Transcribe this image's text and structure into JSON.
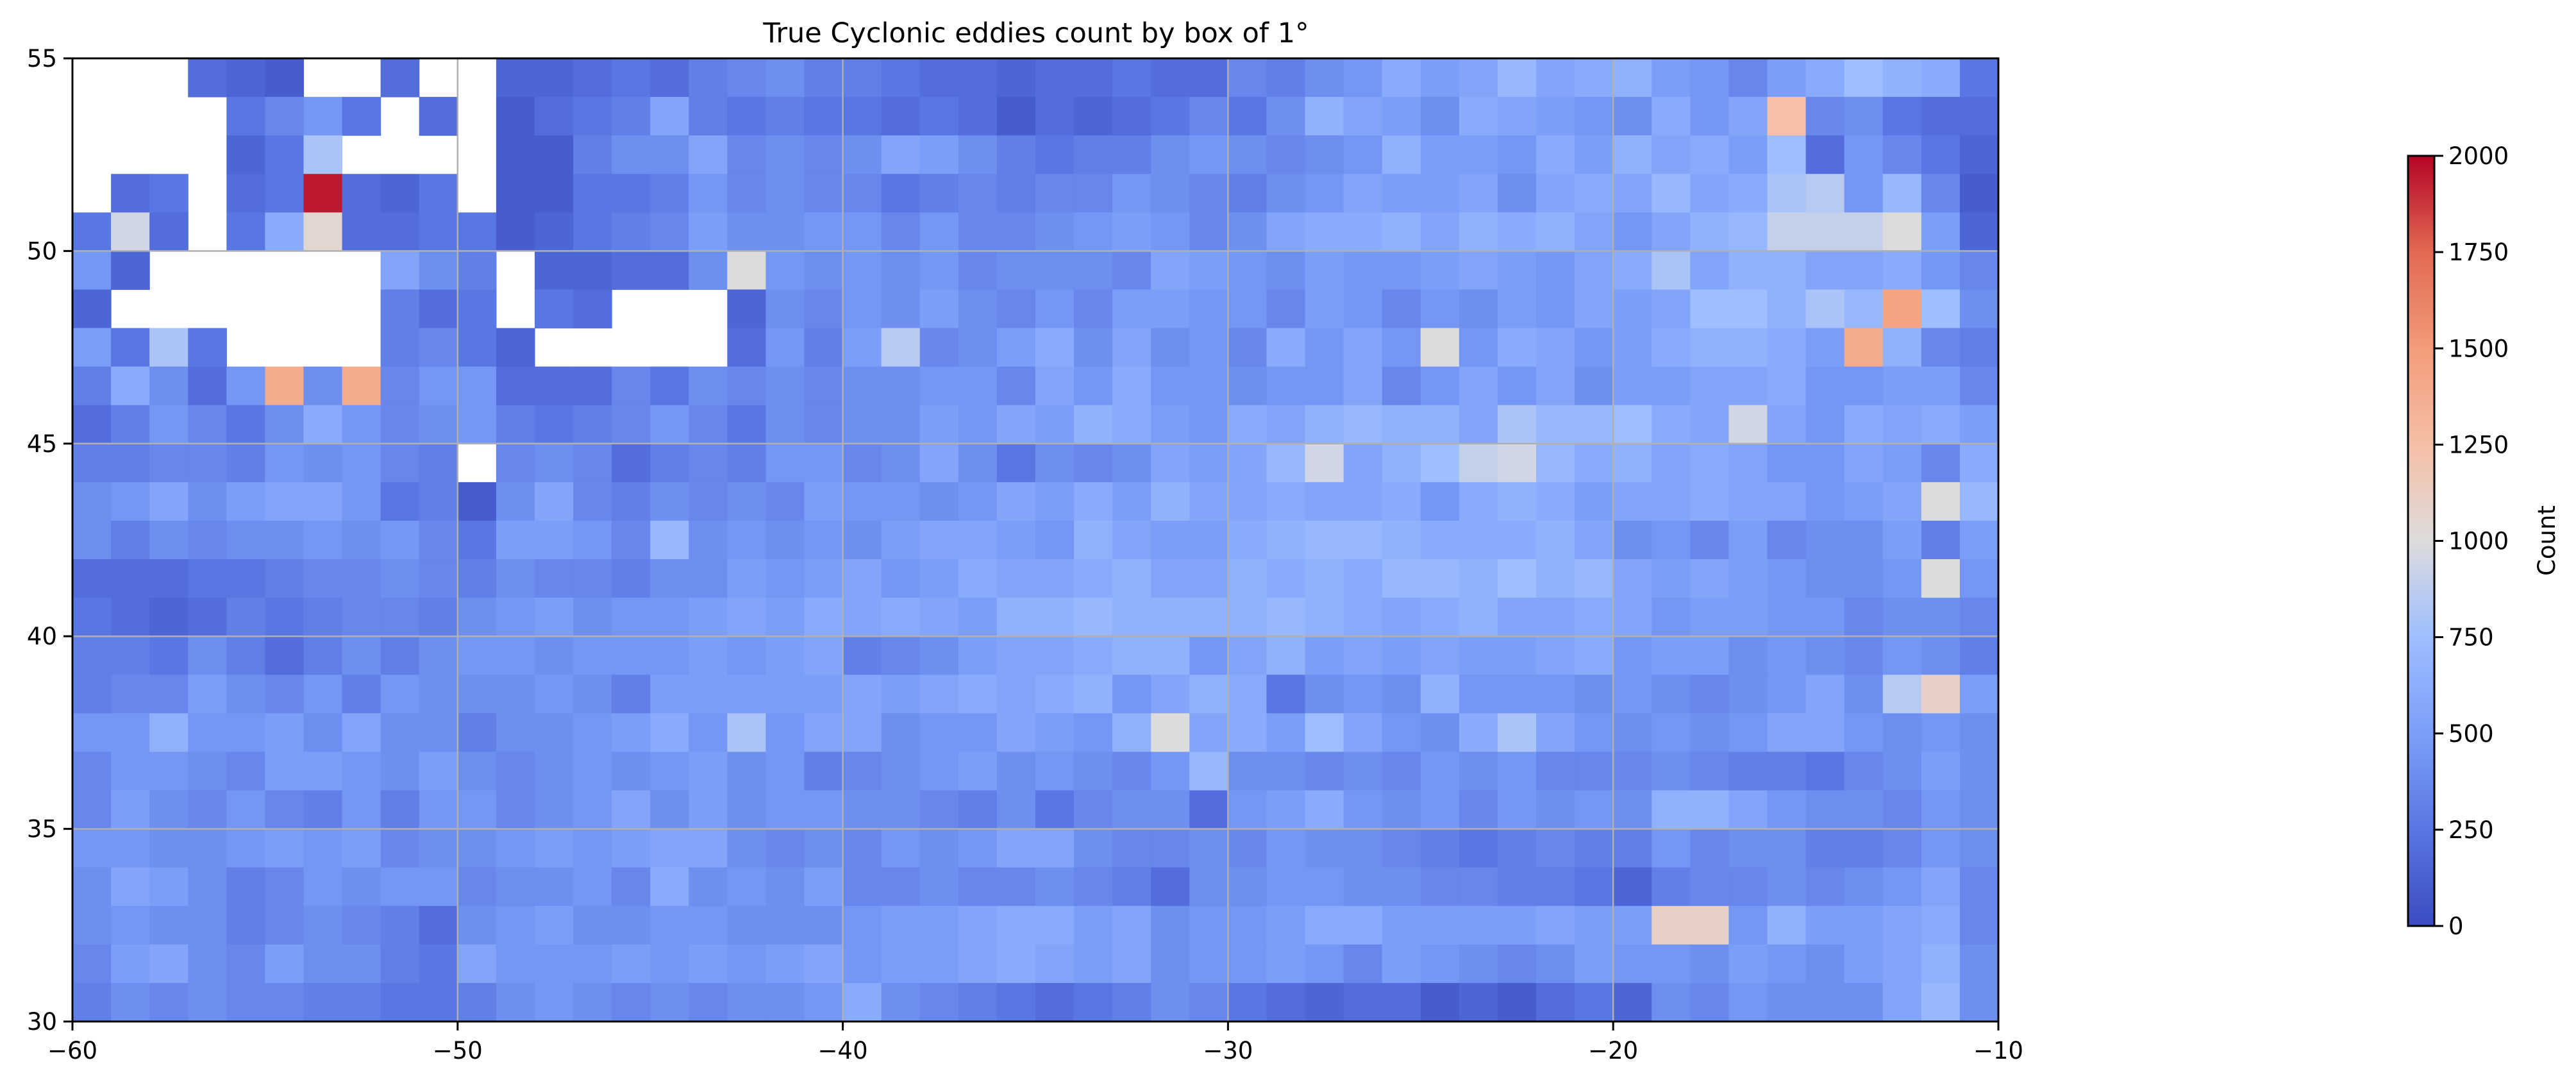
{
  "chart_data": {
    "type": "heatmap",
    "title": "True Cyclonic eddies count by box of 1°",
    "xlim": [
      -60,
      -10
    ],
    "ylim": [
      30,
      55
    ],
    "bin_size_deg": 1,
    "x_ticks": [
      -60,
      -50,
      -40,
      -30,
      -20,
      -10
    ],
    "x_tick_labels": [
      "−60",
      "−50",
      "−40",
      "−30",
      "−20",
      "−10"
    ],
    "y_ticks": [
      30,
      35,
      40,
      45,
      50,
      55
    ],
    "y_tick_labels": [
      "30",
      "35",
      "40",
      "45",
      "50",
      "55"
    ],
    "grid": true,
    "colormap": "coolwarm",
    "colorbar": {
      "label": "Count",
      "range": [
        0,
        2000
      ],
      "ticks": [
        0,
        250,
        500,
        750,
        1000,
        1250,
        1500,
        1750,
        2000
      ],
      "tick_labels": [
        "0",
        "250",
        "500",
        "750",
        "1000",
        "1250",
        "1500",
        "1750",
        "2000"
      ]
    },
    "row_latitudes_top_to_bottom": [
      54.5,
      53.5,
      52.5,
      51.5,
      50.5,
      49.5,
      48.5,
      47.5,
      46.5,
      45.5,
      44.5,
      43.5,
      42.5,
      41.5,
      40.5,
      39.5,
      38.5,
      37.5,
      36.5,
      35.5,
      34.5,
      33.5,
      32.5,
      31.5,
      30.5
    ],
    "column_longitudes": "-59.5 to -10.5 in 1° steps (50 columns)",
    "no_data_value": null,
    "values": [
      [
        null,
        null,
        null,
        200,
        150,
        100,
        null,
        null,
        200,
        null,
        null,
        150,
        150,
        200,
        250,
        200,
        300,
        350,
        400,
        300,
        300,
        250,
        200,
        200,
        150,
        200,
        200,
        250,
        200,
        200,
        350,
        300,
        400,
        450,
        600,
        500,
        550,
        700,
        550,
        600,
        650,
        500,
        450,
        350,
        500,
        600,
        750,
        650,
        600,
        250
      ],
      [
        null,
        null,
        null,
        null,
        250,
        350,
        450,
        250,
        null,
        200,
        null,
        100,
        200,
        250,
        300,
        550,
        300,
        250,
        300,
        250,
        250,
        200,
        250,
        200,
        100,
        200,
        150,
        200,
        250,
        350,
        250,
        400,
        650,
        550,
        500,
        400,
        600,
        550,
        500,
        450,
        400,
        600,
        450,
        550,
        1250,
        350,
        400,
        250,
        200,
        200
      ],
      [
        null,
        null,
        null,
        null,
        150,
        250,
        800,
        null,
        null,
        null,
        null,
        100,
        100,
        300,
        400,
        400,
        550,
        350,
        400,
        350,
        400,
        550,
        500,
        400,
        300,
        250,
        300,
        300,
        400,
        450,
        400,
        350,
        400,
        450,
        650,
        500,
        500,
        450,
        600,
        500,
        650,
        550,
        600,
        500,
        750,
        200,
        450,
        350,
        250,
        150
      ],
      [
        null,
        200,
        250,
        null,
        200,
        250,
        1950,
        200,
        150,
        250,
        null,
        100,
        100,
        250,
        250,
        300,
        450,
        350,
        400,
        350,
        350,
        250,
        300,
        350,
        300,
        350,
        350,
        450,
        400,
        350,
        300,
        400,
        450,
        550,
        500,
        500,
        550,
        400,
        550,
        600,
        550,
        700,
        550,
        600,
        800,
        850,
        450,
        700,
        350,
        100
      ],
      [
        250,
        950,
        200,
        null,
        250,
        600,
        1050,
        200,
        200,
        250,
        250,
        100,
        150,
        250,
        300,
        350,
        500,
        400,
        400,
        450,
        450,
        350,
        450,
        350,
        350,
        400,
        450,
        500,
        450,
        350,
        400,
        550,
        600,
        600,
        650,
        550,
        650,
        600,
        650,
        550,
        450,
        550,
        650,
        700,
        900,
        900,
        900,
        1000,
        500,
        150
      ],
      [
        450,
        150,
        null,
        null,
        null,
        null,
        null,
        null,
        550,
        400,
        300,
        null,
        150,
        150,
        200,
        200,
        400,
        1000,
        450,
        400,
        450,
        400,
        450,
        350,
        400,
        400,
        400,
        350,
        550,
        500,
        450,
        400,
        500,
        450,
        450,
        500,
        550,
        500,
        450,
        550,
        600,
        800,
        550,
        650,
        650,
        550,
        550,
        600,
        450,
        350
      ],
      [
        150,
        null,
        null,
        null,
        null,
        null,
        null,
        null,
        300,
        200,
        250,
        null,
        250,
        200,
        null,
        null,
        null,
        150,
        400,
        350,
        450,
        400,
        500,
        400,
        350,
        450,
        350,
        500,
        500,
        450,
        450,
        350,
        500,
        450,
        350,
        450,
        400,
        500,
        450,
        550,
        500,
        550,
        750,
        750,
        650,
        800,
        700,
        1450,
        750,
        400
      ],
      [
        500,
        250,
        800,
        250,
        null,
        null,
        null,
        null,
        300,
        350,
        250,
        150,
        null,
        null,
        null,
        null,
        null,
        200,
        450,
        300,
        500,
        850,
        350,
        400,
        500,
        600,
        400,
        550,
        400,
        450,
        350,
        600,
        450,
        550,
        450,
        1000,
        450,
        600,
        550,
        450,
        500,
        600,
        650,
        650,
        600,
        500,
        1400,
        650,
        350,
        300
      ],
      [
        300,
        600,
        400,
        200,
        450,
        1400,
        400,
        1400,
        350,
        450,
        450,
        200,
        200,
        200,
        350,
        250,
        400,
        350,
        400,
        350,
        400,
        400,
        450,
        450,
        350,
        550,
        450,
        600,
        450,
        450,
        400,
        450,
        450,
        550,
        350,
        450,
        550,
        450,
        550,
        400,
        500,
        500,
        550,
        550,
        600,
        450,
        450,
        500,
        500,
        350
      ],
      [
        200,
        300,
        450,
        350,
        250,
        400,
        600,
        450,
        350,
        400,
        450,
        300,
        250,
        300,
        350,
        450,
        350,
        250,
        400,
        350,
        400,
        400,
        500,
        450,
        550,
        500,
        650,
        600,
        500,
        450,
        600,
        550,
        650,
        700,
        650,
        650,
        550,
        800,
        700,
        700,
        750,
        600,
        550,
        950,
        550,
        450,
        600,
        550,
        600,
        500
      ],
      [
        300,
        300,
        350,
        350,
        300,
        450,
        400,
        450,
        350,
        300,
        null,
        350,
        400,
        350,
        200,
        300,
        350,
        300,
        450,
        450,
        350,
        400,
        550,
        400,
        250,
        400,
        350,
        400,
        550,
        500,
        550,
        700,
        950,
        550,
        650,
        750,
        900,
        950,
        700,
        600,
        650,
        550,
        600,
        550,
        450,
        450,
        550,
        500,
        350,
        600
      ],
      [
        400,
        450,
        550,
        400,
        500,
        550,
        550,
        450,
        250,
        300,
        100,
        400,
        550,
        350,
        300,
        400,
        350,
        400,
        350,
        500,
        450,
        450,
        400,
        450,
        550,
        500,
        600,
        500,
        650,
        550,
        550,
        600,
        550,
        550,
        600,
        450,
        600,
        650,
        600,
        500,
        550,
        550,
        600,
        550,
        550,
        450,
        500,
        550,
        1000,
        700
      ],
      [
        400,
        300,
        400,
        350,
        400,
        400,
        450,
        400,
        450,
        350,
        250,
        500,
        500,
        450,
        350,
        700,
        400,
        450,
        400,
        450,
        400,
        500,
        550,
        550,
        500,
        450,
        650,
        550,
        500,
        500,
        600,
        650,
        700,
        700,
        650,
        600,
        600,
        600,
        650,
        550,
        400,
        450,
        350,
        500,
        350,
        400,
        400,
        500,
        300,
        500
      ],
      [
        200,
        200,
        200,
        250,
        250,
        300,
        350,
        350,
        400,
        350,
        300,
        400,
        350,
        350,
        300,
        400,
        400,
        500,
        450,
        500,
        550,
        450,
        500,
        600,
        550,
        550,
        600,
        650,
        550,
        550,
        650,
        600,
        650,
        600,
        700,
        700,
        650,
        750,
        650,
        700,
        550,
        500,
        550,
        500,
        450,
        400,
        400,
        450,
        1000,
        450
      ],
      [
        250,
        200,
        150,
        200,
        300,
        250,
        300,
        350,
        350,
        300,
        400,
        450,
        500,
        400,
        450,
        450,
        500,
        550,
        500,
        600,
        550,
        600,
        550,
        500,
        650,
        650,
        700,
        650,
        650,
        650,
        650,
        700,
        650,
        600,
        550,
        600,
        650,
        550,
        550,
        600,
        550,
        450,
        500,
        500,
        450,
        450,
        350,
        400,
        400,
        350
      ],
      [
        300,
        300,
        250,
        400,
        300,
        200,
        300,
        400,
        300,
        400,
        450,
        450,
        400,
        450,
        450,
        450,
        500,
        450,
        500,
        550,
        300,
        350,
        400,
        500,
        550,
        550,
        600,
        650,
        650,
        450,
        550,
        650,
        500,
        550,
        500,
        550,
        500,
        500,
        550,
        600,
        450,
        500,
        500,
        400,
        450,
        400,
        350,
        450,
        400,
        300
      ],
      [
        300,
        350,
        350,
        500,
        400,
        350,
        450,
        300,
        450,
        400,
        400,
        400,
        450,
        400,
        300,
        500,
        500,
        500,
        500,
        500,
        550,
        500,
        550,
        600,
        550,
        600,
        650,
        450,
        550,
        650,
        600,
        250,
        400,
        450,
        400,
        650,
        450,
        450,
        450,
        400,
        450,
        400,
        350,
        400,
        450,
        550,
        400,
        850,
        1100,
        500
      ],
      [
        450,
        450,
        650,
        450,
        450,
        500,
        400,
        550,
        400,
        400,
        300,
        400,
        400,
        450,
        500,
        600,
        450,
        800,
        450,
        550,
        550,
        400,
        450,
        450,
        550,
        500,
        450,
        650,
        1000,
        550,
        600,
        500,
        750,
        550,
        450,
        400,
        600,
        800,
        550,
        450,
        400,
        450,
        400,
        450,
        550,
        550,
        450,
        400,
        450,
        400
      ],
      [
        350,
        450,
        450,
        400,
        350,
        500,
        500,
        450,
        400,
        500,
        400,
        350,
        400,
        450,
        400,
        450,
        500,
        400,
        450,
        300,
        350,
        400,
        450,
        500,
        400,
        450,
        400,
        350,
        450,
        700,
        400,
        400,
        350,
        400,
        350,
        450,
        400,
        450,
        350,
        350,
        350,
        400,
        350,
        300,
        300,
        250,
        350,
        400,
        500,
        400
      ],
      [
        350,
        500,
        400,
        350,
        450,
        350,
        300,
        450,
        300,
        450,
        450,
        350,
        400,
        450,
        550,
        400,
        500,
        400,
        450,
        450,
        400,
        400,
        350,
        300,
        400,
        250,
        350,
        400,
        400,
        200,
        450,
        500,
        600,
        450,
        400,
        450,
        350,
        450,
        400,
        450,
        400,
        650,
        650,
        550,
        450,
        400,
        400,
        350,
        450,
        400
      ],
      [
        450,
        450,
        400,
        400,
        450,
        500,
        450,
        500,
        350,
        400,
        400,
        450,
        500,
        450,
        500,
        550,
        550,
        400,
        350,
        400,
        350,
        450,
        400,
        450,
        550,
        550,
        400,
        350,
        350,
        400,
        350,
        450,
        400,
        400,
        350,
        300,
        250,
        300,
        350,
        300,
        300,
        450,
        350,
        400,
        400,
        300,
        300,
        350,
        450,
        400
      ],
      [
        400,
        550,
        500,
        400,
        300,
        350,
        450,
        400,
        450,
        450,
        350,
        400,
        400,
        450,
        350,
        600,
        400,
        450,
        400,
        500,
        350,
        350,
        400,
        350,
        350,
        400,
        350,
        300,
        200,
        400,
        400,
        450,
        450,
        400,
        400,
        350,
        350,
        300,
        300,
        250,
        150,
        300,
        350,
        350,
        400,
        350,
        400,
        450,
        550,
        350
      ],
      [
        400,
        450,
        400,
        400,
        300,
        350,
        400,
        350,
        300,
        200,
        400,
        450,
        500,
        400,
        400,
        450,
        450,
        400,
        400,
        400,
        450,
        500,
        500,
        550,
        600,
        600,
        500,
        550,
        400,
        450,
        450,
        500,
        600,
        600,
        500,
        500,
        500,
        500,
        550,
        500,
        500,
        1100,
        1100,
        450,
        650,
        500,
        500,
        550,
        600,
        350
      ],
      [
        350,
        500,
        550,
        400,
        350,
        500,
        400,
        400,
        300,
        250,
        550,
        450,
        450,
        450,
        500,
        450,
        500,
        450,
        500,
        550,
        450,
        500,
        500,
        550,
        600,
        550,
        500,
        550,
        400,
        450,
        450,
        500,
        450,
        350,
        500,
        450,
        400,
        350,
        400,
        500,
        450,
        450,
        400,
        500,
        450,
        400,
        500,
        550,
        650,
        400
      ],
      [
        300,
        400,
        350,
        400,
        350,
        350,
        300,
        300,
        250,
        250,
        300,
        400,
        450,
        400,
        350,
        400,
        350,
        400,
        400,
        450,
        600,
        400,
        350,
        300,
        250,
        200,
        250,
        300,
        400,
        350,
        250,
        200,
        150,
        200,
        200,
        100,
        150,
        100,
        200,
        250,
        150,
        400,
        350,
        450,
        400,
        400,
        400,
        550,
        700,
        400
      ]
    ]
  }
}
